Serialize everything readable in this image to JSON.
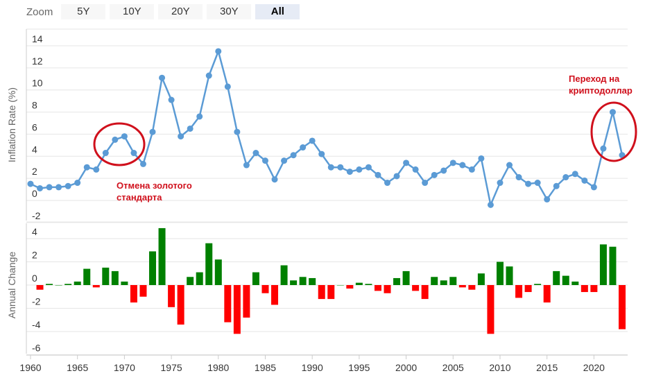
{
  "zoom": {
    "label": "Zoom",
    "buttons": [
      "5Y",
      "10Y",
      "20Y",
      "30Y",
      "All"
    ],
    "active": "All"
  },
  "colors": {
    "line": "#5b9bd5",
    "positive_bar": "#008000",
    "negative_bar": "#ff0000",
    "grid": "#e6e6e6",
    "annotation": "#d0101c"
  },
  "chart_data": [
    {
      "type": "line",
      "ylabel": "Inflation Rate (%)",
      "ylim": [
        -2,
        14
      ],
      "yticks": [
        "14",
        "12",
        "10",
        "8",
        "6",
        "4",
        "2",
        "0",
        "-2"
      ],
      "xlim": [
        1960,
        2023
      ],
      "xticks": [
        "1960",
        "1965",
        "1970",
        "1975",
        "1980",
        "1985",
        "1990",
        "1995",
        "2000",
        "2005",
        "2010",
        "2015",
        "2020"
      ],
      "grid": true,
      "series": [
        {
          "x": [
            1960,
            1961,
            1962,
            1963,
            1964,
            1965,
            1966,
            1967,
            1968,
            1969,
            1970,
            1971,
            1972,
            1973,
            1974,
            1975,
            1976,
            1977,
            1978,
            1979,
            1980,
            1981,
            1982,
            1983,
            1984,
            1985,
            1986,
            1987,
            1988,
            1989,
            1990,
            1991,
            1992,
            1993,
            1994,
            1995,
            1996,
            1997,
            1998,
            1999,
            2000,
            2001,
            2002,
            2003,
            2004,
            2005,
            2006,
            2007,
            2008,
            2009,
            2010,
            2011,
            2012,
            2013,
            2014,
            2015,
            2016,
            2017,
            2018,
            2019,
            2020,
            2021,
            2022,
            2023
          ],
          "y": [
            1.5,
            1.1,
            1.2,
            1.2,
            1.3,
            1.6,
            3.0,
            2.8,
            4.3,
            5.5,
            5.8,
            4.3,
            3.3,
            6.2,
            11.1,
            9.1,
            5.8,
            6.5,
            7.6,
            11.3,
            13.5,
            10.3,
            6.2,
            3.2,
            4.3,
            3.6,
            1.9,
            3.6,
            4.1,
            4.8,
            5.4,
            4.2,
            3.0,
            3.0,
            2.6,
            2.8,
            3.0,
            2.3,
            1.6,
            2.2,
            3.4,
            2.8,
            1.6,
            2.3,
            2.7,
            3.4,
            3.2,
            2.8,
            3.8,
            -0.4,
            1.6,
            3.2,
            2.1,
            1.5,
            1.6,
            0.1,
            1.3,
            2.1,
            2.4,
            1.8,
            1.2,
            4.7,
            8.0,
            4.1
          ]
        }
      ],
      "annotations": [
        {
          "lines": [
            "Отмена золотого",
            "стандарта"
          ]
        },
        {
          "lines": [
            "Переход на",
            "криптодоллар"
          ]
        }
      ]
    },
    {
      "type": "bar",
      "ylabel": "Annual Change",
      "ylim": [
        -6,
        4
      ],
      "yticks": [
        "4",
        "2",
        "0",
        "-2",
        "-4",
        "-6"
      ],
      "grid": true,
      "series": [
        {
          "x": [
            1961,
            1962,
            1963,
            1964,
            1965,
            1966,
            1967,
            1968,
            1969,
            1970,
            1971,
            1972,
            1973,
            1974,
            1975,
            1976,
            1977,
            1978,
            1979,
            1980,
            1981,
            1982,
            1983,
            1984,
            1985,
            1986,
            1987,
            1988,
            1989,
            1990,
            1991,
            1992,
            1993,
            1994,
            1995,
            1996,
            1997,
            1998,
            1999,
            2000,
            2001,
            2002,
            2003,
            2004,
            2005,
            2006,
            2007,
            2008,
            2009,
            2010,
            2011,
            2012,
            2013,
            2014,
            2015,
            2016,
            2017,
            2018,
            2019,
            2020,
            2021,
            2022,
            2023
          ],
          "values": [
            -0.4,
            0.1,
            0.0,
            0.1,
            0.3,
            1.4,
            -0.2,
            1.5,
            1.2,
            0.3,
            -1.5,
            -1.0,
            2.9,
            4.9,
            -1.9,
            -3.4,
            0.7,
            1.1,
            3.6,
            2.2,
            -3.2,
            -4.2,
            -2.8,
            1.1,
            -0.7,
            -1.7,
            1.7,
            0.4,
            0.7,
            0.6,
            -1.2,
            -1.2,
            0.0,
            -0.3,
            0.2,
            0.1,
            -0.5,
            -0.7,
            0.6,
            1.2,
            -0.5,
            -1.2,
            0.7,
            0.4,
            0.7,
            -0.2,
            -0.4,
            1.0,
            -4.2,
            2.0,
            1.6,
            -1.1,
            -0.6,
            0.1,
            -1.5,
            1.2,
            0.8,
            0.3,
            -0.6,
            -0.6,
            3.5,
            3.3,
            -3.8
          ]
        }
      ]
    }
  ]
}
